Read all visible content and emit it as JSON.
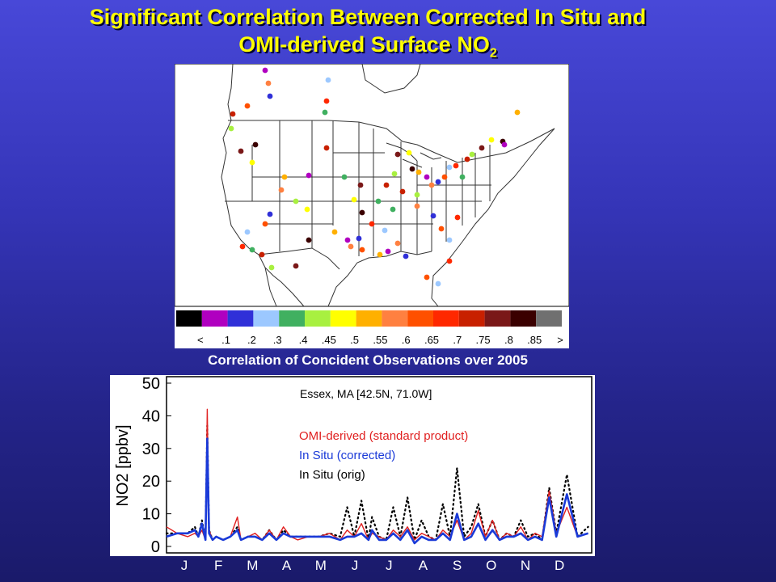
{
  "slide": {
    "title_line1": "Significant Correlation Between Corrected In Situ and",
    "title_line2": "OMI-derived Surface NO",
    "title_sub": "2"
  },
  "map": {
    "caption": "Correlation of Concident Observations over 2005",
    "colorbar": {
      "colors": [
        "#000000",
        "#b000c0",
        "#3030d8",
        "#9cc8ff",
        "#40b060",
        "#a8f040",
        "#ffff00",
        "#ffb000",
        "#ff8040",
        "#ff5000",
        "#ff2800",
        "#c82000",
        "#7a1818",
        "#3a0000",
        "#707070"
      ],
      "labels": [
        "<",
        ".1",
        ".2",
        ".3",
        ".4",
        ".45",
        ".5",
        ".55",
        ".6",
        ".65",
        ".7",
        ".75",
        ".8",
        ".85",
        ">"
      ]
    }
  },
  "chart_data": {
    "type": "line",
    "title": "Essex, MA [42.5N, 71.0W]",
    "xlabel": "",
    "ylabel": "NO2 [ppbv]",
    "ylim": [
      0,
      50
    ],
    "yticks": [
      0,
      10,
      20,
      30,
      40,
      50
    ],
    "months": [
      "J",
      "F",
      "M",
      "A",
      "M",
      "J",
      "J",
      "A",
      "S",
      "O",
      "N",
      "D"
    ],
    "legend": [
      "OMI-derived (standard product)",
      "In Situ (corrected)",
      "In Situ (orig)"
    ],
    "series": [
      {
        "name": "OMI-derived (standard product)",
        "color": "#e02020",
        "style": "solid",
        "x": [
          0,
          0.3,
          0.6,
          0.8,
          0.9,
          1.0,
          1.1,
          1.15,
          1.2,
          1.3,
          1.4,
          1.6,
          1.8,
          2.0,
          2.1,
          2.3,
          2.5,
          2.7,
          2.9,
          3.1,
          3.3,
          3.5,
          3.7,
          4.0,
          4.3,
          4.6,
          4.9,
          5.1,
          5.3,
          5.5,
          5.7,
          5.8,
          6.0,
          6.2,
          6.4,
          6.6,
          6.8,
          7.0,
          7.2,
          7.4,
          7.6,
          7.8,
          8.0,
          8.2,
          8.4,
          8.6,
          8.8,
          9.0,
          9.2,
          9.4,
          9.6,
          9.8,
          10.0,
          10.2,
          10.4,
          10.6,
          10.8,
          11.0,
          11.3,
          11.6,
          11.9
        ],
        "values": [
          6,
          4,
          3,
          4,
          3,
          5,
          2,
          42,
          5,
          2,
          3,
          2,
          3,
          9,
          2,
          3,
          4,
          2,
          5,
          2,
          6,
          3,
          2,
          3,
          3,
          4,
          2,
          5,
          3,
          7,
          2,
          4,
          3,
          2,
          5,
          3,
          6,
          2,
          4,
          3,
          2,
          5,
          3,
          8,
          2,
          4,
          11,
          3,
          8,
          2,
          4,
          3,
          6,
          2,
          4,
          3,
          17,
          4,
          12,
          3,
          4
        ]
      },
      {
        "name": "In Situ (corrected)",
        "color": "#1a3ad8",
        "style": "solid",
        "x": [
          0,
          0.3,
          0.6,
          0.8,
          0.9,
          1.0,
          1.1,
          1.15,
          1.2,
          1.3,
          1.4,
          1.6,
          1.8,
          2.0,
          2.1,
          2.3,
          2.5,
          2.7,
          2.9,
          3.1,
          3.3,
          3.5,
          3.7,
          4.0,
          4.3,
          4.6,
          4.9,
          5.1,
          5.3,
          5.5,
          5.7,
          5.8,
          6.0,
          6.2,
          6.4,
          6.6,
          6.8,
          7.0,
          7.2,
          7.4,
          7.6,
          7.8,
          8.0,
          8.2,
          8.4,
          8.6,
          8.8,
          9.0,
          9.2,
          9.4,
          9.6,
          9.8,
          10.0,
          10.2,
          10.4,
          10.6,
          10.8,
          11.0,
          11.3,
          11.6,
          11.9
        ],
        "values": [
          3,
          4,
          4,
          5,
          3,
          7,
          2,
          33,
          4,
          2,
          3,
          2,
          3,
          5,
          2,
          3,
          3,
          2,
          4,
          2,
          4,
          3,
          3,
          3,
          3,
          3,
          2,
          3,
          3,
          4,
          2,
          5,
          2,
          2,
          4,
          2,
          5,
          1,
          3,
          2,
          2,
          4,
          2,
          10,
          2,
          3,
          7,
          2,
          5,
          2,
          3,
          3,
          4,
          2,
          3,
          2,
          15,
          3,
          16,
          3,
          4
        ]
      },
      {
        "name": "In Situ (orig)",
        "color": "#000000",
        "style": "dotted",
        "x": [
          0,
          0.3,
          0.6,
          0.8,
          0.9,
          1.0,
          1.1,
          1.15,
          1.2,
          1.3,
          1.4,
          1.6,
          1.8,
          2.0,
          2.1,
          2.3,
          2.5,
          2.7,
          2.9,
          3.1,
          3.3,
          3.5,
          3.7,
          4.0,
          4.3,
          4.6,
          4.9,
          5.1,
          5.3,
          5.5,
          5.7,
          5.8,
          6.0,
          6.2,
          6.4,
          6.6,
          6.8,
          7.0,
          7.2,
          7.4,
          7.6,
          7.8,
          8.0,
          8.2,
          8.4,
          8.6,
          8.8,
          9.0,
          9.2,
          9.4,
          9.6,
          9.8,
          10.0,
          10.2,
          10.4,
          10.6,
          10.8,
          11.0,
          11.3,
          11.6,
          11.9
        ],
        "values": [
          4,
          4,
          4,
          6,
          3,
          8,
          2,
          37,
          5,
          2,
          3,
          2,
          3,
          6,
          2,
          3,
          3,
          2,
          5,
          2,
          5,
          3,
          3,
          3,
          3,
          4,
          3,
          12,
          3,
          14,
          2,
          9,
          3,
          2,
          12,
          3,
          15,
          2,
          8,
          3,
          2,
          13,
          3,
          24,
          3,
          6,
          13,
          3,
          8,
          2,
          4,
          3,
          8,
          3,
          4,
          2,
          18,
          4,
          22,
          3,
          6
        ]
      }
    ]
  }
}
